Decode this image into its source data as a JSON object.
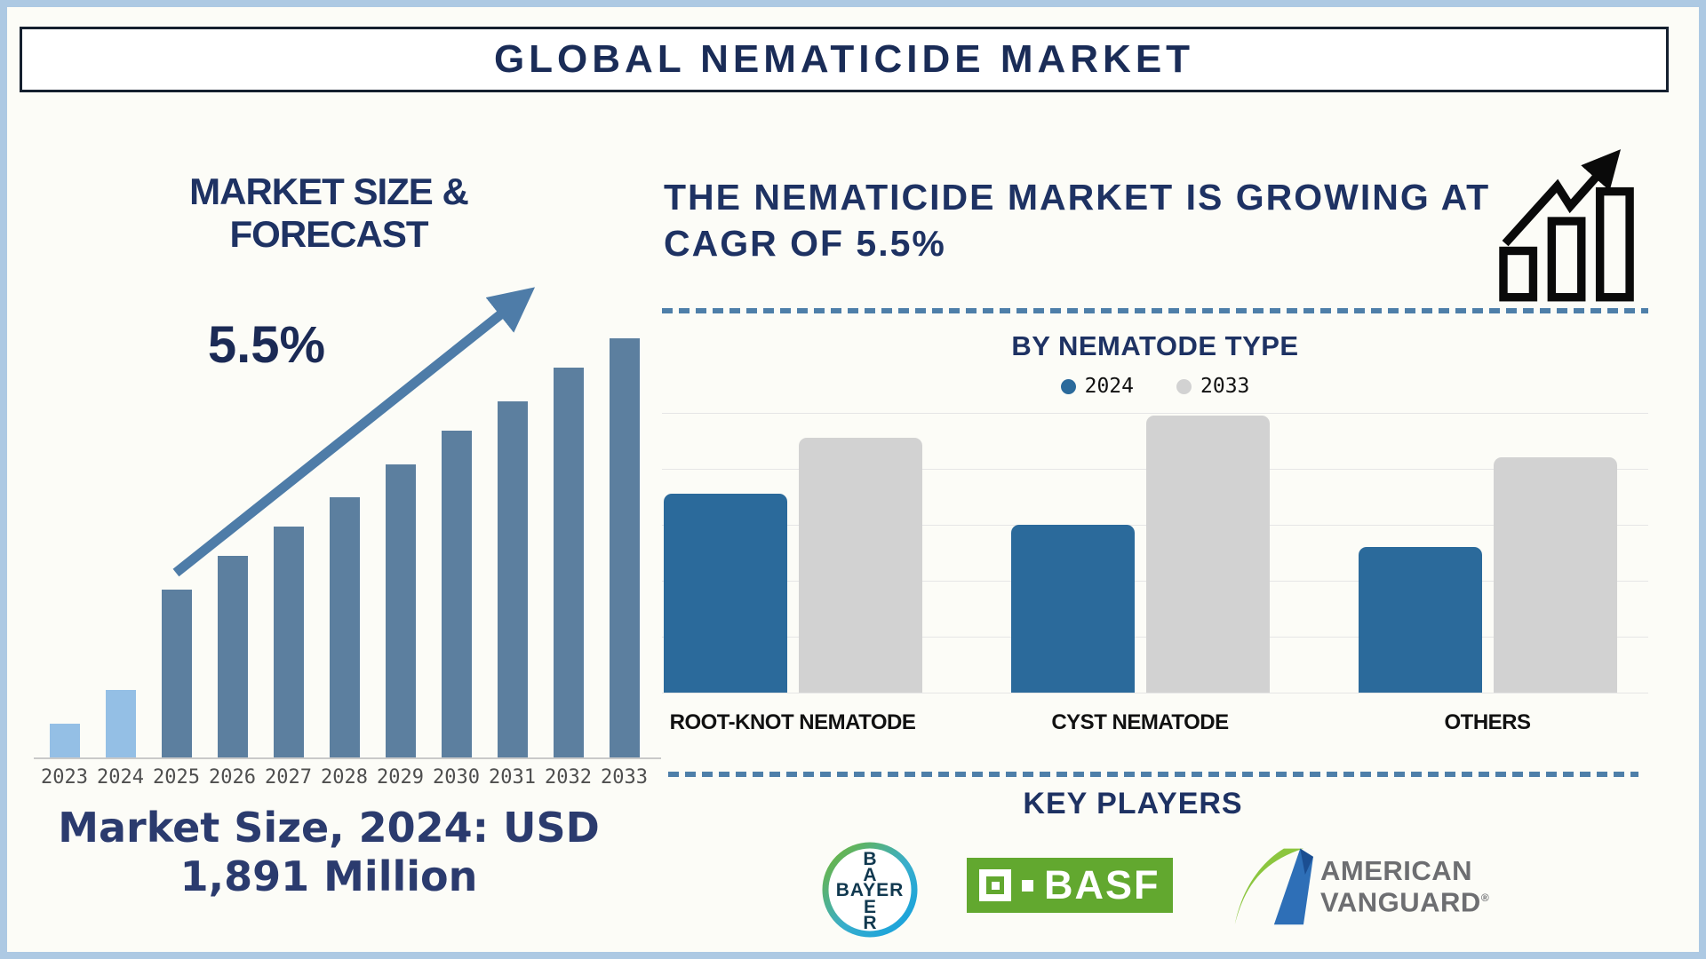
{
  "title_bar": {
    "title": "GLOBAL NEMATICIDE MARKET"
  },
  "left_panel": {
    "section_title": "MARKET SIZE & FORECAST",
    "cagr_label": "5.5%",
    "caption_line1": "Market Size, 2024: USD",
    "caption_line2": "1,891 Million"
  },
  "right_panel": {
    "headline_line1": "THE NEMATICIDE MARKET IS GROWING AT",
    "headline_line2": "CAGR OF 5.5%",
    "by_type_title": "BY NEMATODE TYPE",
    "key_players_title": "KEY PLAYERS",
    "players": [
      {
        "name": "Bayer",
        "logo_text": "BAYER",
        "vertical": [
          "B",
          "A",
          "E",
          "R"
        ]
      },
      {
        "name": "BASF",
        "logo_text": "BASF"
      },
      {
        "name": "American Vanguard",
        "logo_line1": "AMERICAN",
        "logo_line2": "VANGUARD",
        "trademark": "®"
      }
    ]
  },
  "chart_data": [
    {
      "type": "bar",
      "title": "MARKET SIZE & FORECAST",
      "categories": [
        "2023",
        "2024",
        "2025",
        "2026",
        "2027",
        "2028",
        "2029",
        "2030",
        "2031",
        "2032",
        "2033"
      ],
      "values_pct_of_max_height": [
        8,
        16,
        40,
        48,
        55,
        62,
        70,
        78,
        85,
        93,
        100
      ],
      "bar_colors": [
        "#94BFE5",
        "#94BFE5",
        "#5C7F9F",
        "#5C7F9F",
        "#5C7F9F",
        "#5C7F9F",
        "#5C7F9F",
        "#5C7F9F",
        "#5C7F9F",
        "#5C7F9F",
        "#5C7F9F"
      ],
      "annotations": {
        "cagr": "5.5%",
        "market_size_2024": "USD 1,891 Million"
      },
      "xlabel": "",
      "ylabel": "",
      "gridlines": false,
      "axis_color": "#C9C9C9"
    },
    {
      "type": "grouped_bar",
      "title": "BY NEMATODE TYPE",
      "categories": [
        "ROOT-KNOT NEMATODE",
        "CYST NEMATODE",
        "OTHERS"
      ],
      "series": [
        {
          "name": "2024",
          "color": "#2B6A9B",
          "values_pct_of_plot_height": [
            71,
            60,
            52
          ]
        },
        {
          "name": "2033",
          "color": "#D2D2D2",
          "values_pct_of_plot_height": [
            91,
            99,
            84
          ]
        }
      ],
      "gridlines": true,
      "legend_position": "top",
      "gridline_color": "#E6E6E6"
    }
  ],
  "palette": {
    "navy_heading": "#1E3263",
    "frame_border": "#ADC9E3",
    "dashed_divider": "#4E7FA9",
    "trend_arrow": "#4E7CA8",
    "forecast_bar": "#5C7F9F",
    "forecast_bar_highlight": "#94BFE5",
    "series_2024_blue": "#2B6A9B",
    "series_2033_gray": "#D2D2D2",
    "basf_green": "#62A82F",
    "bayer_letters": "#10384F",
    "amvan_gray": "#6D6E71"
  }
}
